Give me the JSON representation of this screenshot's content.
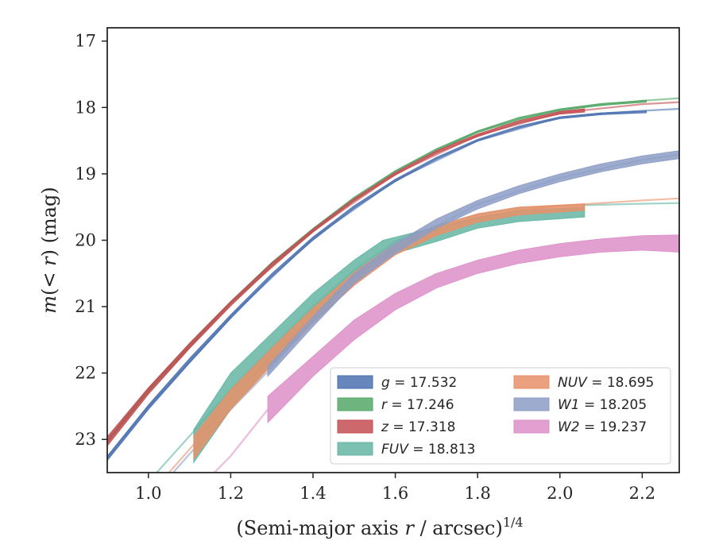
{
  "chart_data": {
    "type": "line",
    "xlabel": "(Semi-major axis r / arcsec)^1/4",
    "ylabel": "m(< r) (mag)",
    "xlim": [
      0.9,
      2.29
    ],
    "ylim": [
      23.5,
      16.8
    ],
    "y_inverted": true,
    "xticks": [
      1.0,
      1.2,
      1.4,
      1.6,
      1.8,
      2.0,
      2.2
    ],
    "yticks": [
      17,
      18,
      19,
      20,
      21,
      22,
      23
    ],
    "xtick_labels": [
      "1.0",
      "1.2",
      "1.4",
      "1.6",
      "1.8",
      "2.0",
      "2.2"
    ],
    "ytick_labels": [
      "17",
      "18",
      "19",
      "20",
      "21",
      "22",
      "23"
    ],
    "grid": false,
    "legend_position": "lower-right",
    "series": [
      {
        "name": "g = 17.532",
        "symbol": "g",
        "value": "17.532",
        "color": "#4c72b0",
        "band": [
          [
            0.9,
            23.25,
            23.32
          ],
          [
            1.0,
            22.48,
            22.55
          ],
          [
            1.1,
            21.78,
            21.85
          ],
          [
            1.2,
            21.12,
            21.18
          ],
          [
            1.3,
            20.5,
            20.55
          ],
          [
            1.4,
            19.95,
            20.0
          ],
          [
            1.5,
            19.48,
            19.52
          ],
          [
            1.6,
            19.08,
            19.12
          ],
          [
            1.7,
            18.75,
            18.78
          ],
          [
            1.8,
            18.48,
            18.51
          ],
          [
            1.9,
            18.28,
            18.31
          ],
          [
            2.0,
            18.14,
            18.17
          ],
          [
            2.1,
            18.08,
            18.11
          ],
          [
            2.21,
            18.05,
            18.08
          ]
        ],
        "model": [
          [
            0.9,
            23.28
          ],
          [
            1.0,
            22.51
          ],
          [
            1.2,
            21.15
          ],
          [
            1.4,
            19.97
          ],
          [
            1.6,
            19.1
          ],
          [
            1.8,
            18.5
          ],
          [
            2.0,
            18.15
          ],
          [
            2.1,
            18.09
          ],
          [
            2.2,
            18.05
          ],
          [
            2.29,
            18.02
          ]
        ]
      },
      {
        "name": "r = 17.246",
        "symbol": "r",
        "value": "17.246",
        "color": "#55a868",
        "band": [
          [
            0.9,
            23.0,
            23.06
          ],
          [
            1.0,
            22.23,
            22.29
          ],
          [
            1.1,
            21.55,
            21.6
          ],
          [
            1.2,
            20.92,
            20.96
          ],
          [
            1.3,
            20.33,
            20.37
          ],
          [
            1.4,
            19.82,
            19.86
          ],
          [
            1.5,
            19.35,
            19.38
          ],
          [
            1.6,
            18.95,
            18.98
          ],
          [
            1.7,
            18.62,
            18.65
          ],
          [
            1.8,
            18.35,
            18.38
          ],
          [
            1.9,
            18.15,
            18.18
          ],
          [
            2.0,
            18.02,
            18.05
          ],
          [
            2.1,
            17.94,
            17.97
          ],
          [
            2.21,
            17.89,
            17.92
          ]
        ],
        "model": [
          [
            0.9,
            23.03
          ],
          [
            1.0,
            22.26
          ],
          [
            1.2,
            20.94
          ],
          [
            1.4,
            19.84
          ],
          [
            1.6,
            18.96
          ],
          [
            1.8,
            18.36
          ],
          [
            2.0,
            18.03
          ],
          [
            2.2,
            17.9
          ],
          [
            2.29,
            17.86
          ]
        ]
      },
      {
        "name": "z = 17.318",
        "symbol": "z",
        "value": "17.318",
        "color": "#c44e52",
        "band": [
          [
            0.9,
            22.96,
            23.1
          ],
          [
            1.0,
            22.22,
            22.32
          ],
          [
            1.1,
            21.55,
            21.63
          ],
          [
            1.2,
            20.92,
            20.99
          ],
          [
            1.3,
            20.34,
            20.4
          ],
          [
            1.4,
            19.83,
            19.88
          ],
          [
            1.5,
            19.37,
            19.41
          ],
          [
            1.6,
            18.98,
            19.02
          ],
          [
            1.7,
            18.65,
            18.69
          ],
          [
            1.8,
            18.4,
            18.44
          ],
          [
            1.9,
            18.2,
            18.24
          ],
          [
            2.0,
            18.06,
            18.1
          ],
          [
            2.06,
            18.02,
            18.07
          ]
        ],
        "model": [
          [
            0.9,
            23.03
          ],
          [
            1.0,
            22.27
          ],
          [
            1.2,
            20.95
          ],
          [
            1.4,
            19.86
          ],
          [
            1.6,
            19.0
          ],
          [
            1.8,
            18.42
          ],
          [
            2.0,
            18.08
          ],
          [
            2.2,
            17.95
          ],
          [
            2.29,
            17.92
          ]
        ]
      },
      {
        "name": "FUV = 18.813",
        "symbol": "FUV",
        "value": "18.813",
        "color": "#64b5a3",
        "band": [
          [
            1.11,
            22.85,
            23.35
          ],
          [
            1.2,
            22.0,
            22.55
          ],
          [
            1.3,
            21.4,
            21.85
          ],
          [
            1.4,
            20.8,
            21.18
          ],
          [
            1.5,
            20.3,
            20.6
          ],
          [
            1.57,
            20.0,
            20.25
          ],
          [
            1.7,
            19.8,
            20.02
          ],
          [
            1.8,
            19.65,
            19.82
          ],
          [
            1.9,
            19.55,
            19.72
          ],
          [
            2.06,
            19.5,
            19.65
          ]
        ],
        "model": [
          [
            1.02,
            23.5
          ],
          [
            1.1,
            22.95
          ],
          [
            1.2,
            22.25
          ],
          [
            1.3,
            21.62
          ],
          [
            1.4,
            21.0
          ],
          [
            1.5,
            20.45
          ],
          [
            1.6,
            20.02
          ],
          [
            1.7,
            19.78
          ],
          [
            1.8,
            19.62
          ],
          [
            1.9,
            19.52
          ],
          [
            2.0,
            19.48
          ],
          [
            2.2,
            19.45
          ],
          [
            2.29,
            19.44
          ]
        ]
      },
      {
        "name": "NUV = 18.695",
        "symbol": "NUV",
        "value": "18.695",
        "color": "#e8916a",
        "band": [
          [
            1.11,
            22.95,
            23.3
          ],
          [
            1.2,
            22.25,
            22.55
          ],
          [
            1.3,
            21.62,
            21.88
          ],
          [
            1.4,
            21.02,
            21.25
          ],
          [
            1.5,
            20.48,
            20.68
          ],
          [
            1.6,
            20.05,
            20.22
          ],
          [
            1.7,
            19.78,
            19.93
          ],
          [
            1.8,
            19.6,
            19.73
          ],
          [
            1.9,
            19.5,
            19.62
          ],
          [
            2.06,
            19.45,
            19.55
          ]
        ],
        "model": [
          [
            1.05,
            23.5
          ],
          [
            1.1,
            23.15
          ],
          [
            1.2,
            22.42
          ],
          [
            1.3,
            21.76
          ],
          [
            1.4,
            21.14
          ],
          [
            1.5,
            20.58
          ],
          [
            1.6,
            20.14
          ],
          [
            1.7,
            19.85
          ],
          [
            1.8,
            19.66
          ],
          [
            1.9,
            19.55
          ],
          [
            2.0,
            19.48
          ],
          [
            2.2,
            19.4
          ],
          [
            2.29,
            19.37
          ]
        ]
      },
      {
        "name": "W1 = 18.205",
        "symbol": "W1",
        "value": "18.205",
        "color": "#8c9dc6",
        "band": [
          [
            1.29,
            21.9,
            22.05
          ],
          [
            1.4,
            21.15,
            21.3
          ],
          [
            1.5,
            20.5,
            20.65
          ],
          [
            1.6,
            20.05,
            20.2
          ],
          [
            1.7,
            19.68,
            19.82
          ],
          [
            1.8,
            19.4,
            19.53
          ],
          [
            1.9,
            19.18,
            19.3
          ],
          [
            2.0,
            19.0,
            19.12
          ],
          [
            2.1,
            18.85,
            18.97
          ],
          [
            2.2,
            18.73,
            18.85
          ],
          [
            2.29,
            18.65,
            18.77
          ]
        ],
        "model": [
          [
            1.06,
            23.5
          ],
          [
            1.1,
            23.22
          ],
          [
            1.2,
            22.55
          ],
          [
            1.29,
            21.98
          ],
          [
            1.4,
            21.22
          ],
          [
            1.6,
            20.12
          ],
          [
            1.8,
            19.46
          ],
          [
            2.0,
            19.06
          ],
          [
            2.2,
            18.79
          ],
          [
            2.29,
            18.71
          ]
        ]
      },
      {
        "name": "W2 = 19.237",
        "symbol": "W2",
        "value": "19.237",
        "color": "#dd8fc8",
        "band": [
          [
            1.29,
            22.35,
            22.75
          ],
          [
            1.4,
            21.75,
            22.05
          ],
          [
            1.5,
            21.2,
            21.5
          ],
          [
            1.6,
            20.8,
            21.05
          ],
          [
            1.7,
            20.5,
            20.72
          ],
          [
            1.8,
            20.3,
            20.5
          ],
          [
            1.9,
            20.15,
            20.35
          ],
          [
            2.0,
            20.05,
            20.25
          ],
          [
            2.1,
            19.98,
            20.18
          ],
          [
            2.2,
            19.93,
            20.15
          ],
          [
            2.29,
            19.92,
            20.18
          ]
        ],
        "model": [
          [
            1.16,
            23.5
          ],
          [
            1.2,
            23.25
          ],
          [
            1.29,
            22.55
          ]
        ]
      }
    ]
  }
}
